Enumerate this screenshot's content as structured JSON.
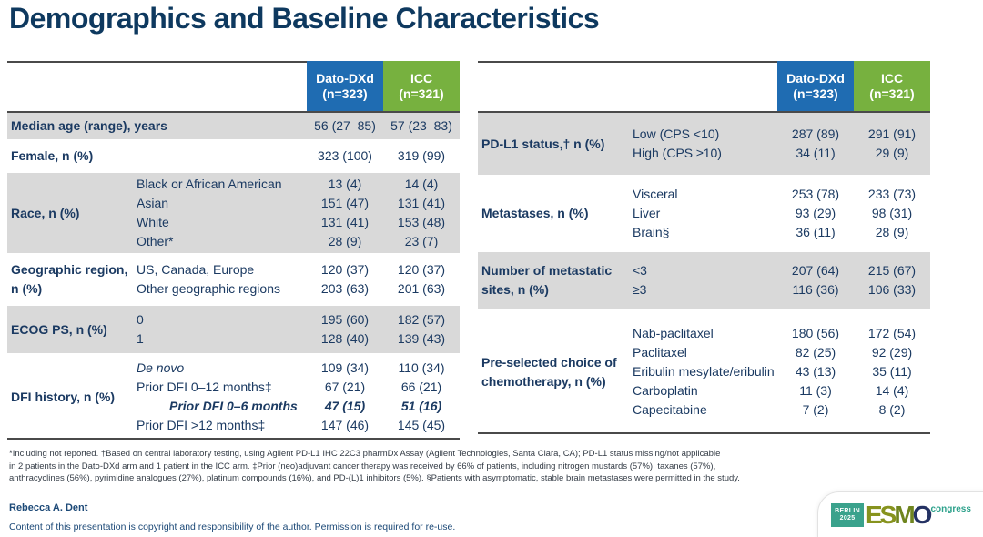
{
  "title": "Demographics and Baseline Characteristics",
  "header": {
    "arm1": {
      "name": "Dato-DXd",
      "n": "(n=323)"
    },
    "arm2": {
      "name": "ICC",
      "n": "(n=321)"
    }
  },
  "left_table": {
    "rows": [
      {
        "category": "Median age (range), years",
        "v1": "56 (27–85)",
        "v2": "57 (23–83)"
      },
      {
        "category": "Female, n (%)",
        "v1": "323 (100)",
        "v2": "319 (99)"
      },
      {
        "category": "Race, n (%)",
        "items": [
          {
            "label": "Black or African American",
            "v1": "13 (4)",
            "v2": "14 (4)"
          },
          {
            "label": "Asian",
            "v1": "151 (47)",
            "v2": "131 (41)"
          },
          {
            "label": "White",
            "v1": "131 (41)",
            "v2": "153 (48)"
          },
          {
            "label": "Other*",
            "v1": "28 (9)",
            "v2": "23 (7)"
          }
        ]
      },
      {
        "category": "Geographic region, n (%)",
        "items": [
          {
            "label": "US, Canada, Europe",
            "v1": "120 (37)",
            "v2": "120 (37)"
          },
          {
            "label": "Other geographic regions",
            "v1": "203 (63)",
            "v2": "201 (63)"
          }
        ]
      },
      {
        "category": "ECOG PS, n (%)",
        "items": [
          {
            "label": "0",
            "v1": "195 (60)",
            "v2": "182 (57)"
          },
          {
            "label": "1",
            "v1": "128 (40)",
            "v2": "139 (43)"
          }
        ]
      },
      {
        "category": "DFI history, n (%)",
        "items": [
          {
            "label": "De novo",
            "v1": "109 (34)",
            "v2": "110 (34)"
          },
          {
            "label": "Prior DFI 0–12 months‡",
            "v1": "67 (21)",
            "v2": "66 (21)"
          },
          {
            "label": "Prior DFI 0–6 months",
            "v1": "47 (15)",
            "v2": "51 (16)"
          },
          {
            "label": "Prior DFI >12 months‡",
            "v1": "147 (46)",
            "v2": "145 (45)"
          }
        ]
      }
    ]
  },
  "right_table": {
    "rows": [
      {
        "category": "PD-L1 status,† n (%)",
        "items": [
          {
            "label": "Low (CPS <10)",
            "v1": "287 (89)",
            "v2": "291 (91)"
          },
          {
            "label": "High (CPS ≥10)",
            "v1": "34 (11)",
            "v2": "29 (9)"
          }
        ]
      },
      {
        "category": "Metastases, n (%)",
        "items": [
          {
            "label": "Visceral",
            "v1": "253 (78)",
            "v2": "233 (73)"
          },
          {
            "label": "Liver",
            "v1": "93 (29)",
            "v2": "98 (31)"
          },
          {
            "label": "Brain§",
            "v1": "36 (11)",
            "v2": "28 (9)"
          }
        ]
      },
      {
        "category": "Number of metastatic sites, n (%)",
        "items": [
          {
            "label": "<3",
            "v1": "207 (64)",
            "v2": "215 (67)"
          },
          {
            "label": "≥3",
            "v1": "116 (36)",
            "v2": "106 (33)"
          }
        ]
      },
      {
        "category": "Pre-selected choice of chemotherapy, n (%)",
        "items": [
          {
            "label": "Nab-paclitaxel",
            "v1": "180 (56)",
            "v2": "172 (54)"
          },
          {
            "label": "Paclitaxel",
            "v1": "82 (25)",
            "v2": "92 (29)"
          },
          {
            "label": "Eribulin mesylate/eribulin",
            "v1": "43 (13)",
            "v2": "35 (11)"
          },
          {
            "label": "Carboplatin",
            "v1": "11 (3)",
            "v2": "14 (4)"
          },
          {
            "label": "Capecitabine",
            "v1": "7 (2)",
            "v2": "8 (2)"
          }
        ]
      }
    ]
  },
  "footnotes": [
    "*Including not reported. †Based on central laboratory testing, using Agilent PD-L1 IHC 22C3 pharmDx Assay (Agilent Technologies, Santa Clara, CA); PD-L1 status missing/not applicable",
    "in 2 patients in the Dato-DXd arm and 1 patient in the ICC arm. ‡Prior (neo)adjuvant cancer therapy was received by 66% of patients, including nitrogen mustards (57%), taxanes (57%),",
    "anthracyclines (56%), pyrimidine analogues (27%), platinum compounds (16%), and PD-(L)1 inhibitors (5%). §Patients with asymptomatic, stable brain metastases were permitted in the study."
  ],
  "author": "Rebecca A. Dent",
  "copyright": "Content of this presentation is copyright and responsibility of the author. Permission is required for re-use.",
  "logo": {
    "badge_line1": "BERLIN",
    "badge_line2": "2025",
    "letters": [
      "E",
      "S",
      "M",
      "O"
    ],
    "congress": "congress"
  },
  "colors": {
    "arm1_blue": "#1F6CB2",
    "arm2_green": "#77B13F",
    "row_gray": "#D9D9D9",
    "text_navy": "#1B3A62",
    "title_navy": "#0E395F",
    "logo_teal": "#3AA28C",
    "logo_olive": "#87931E",
    "logo_navy": "#243263"
  }
}
